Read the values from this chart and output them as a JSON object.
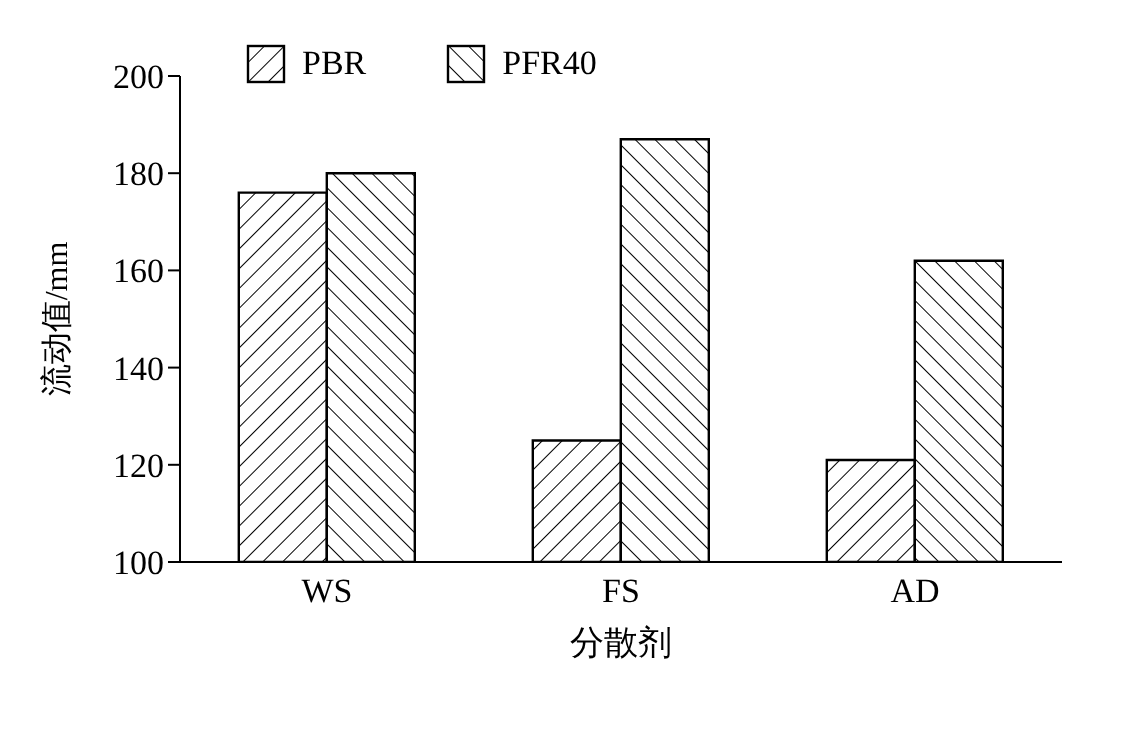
{
  "chart_data": {
    "type": "bar",
    "xlabel": "分散剂",
    "ylabel": "流动值/mm",
    "categories": [
      "WS",
      "FS",
      "AD"
    ],
    "series": [
      {
        "name": "PBR",
        "color": "#000000",
        "values": [
          176,
          125,
          121
        ]
      },
      {
        "name": "PFR40",
        "color": "#000000",
        "values": [
          180,
          187,
          162
        ]
      }
    ],
    "ylim": [
      100,
      200
    ],
    "yticks": [
      100,
      120,
      140,
      160,
      180,
      200
    ],
    "legend": "top left",
    "grid": false
  }
}
